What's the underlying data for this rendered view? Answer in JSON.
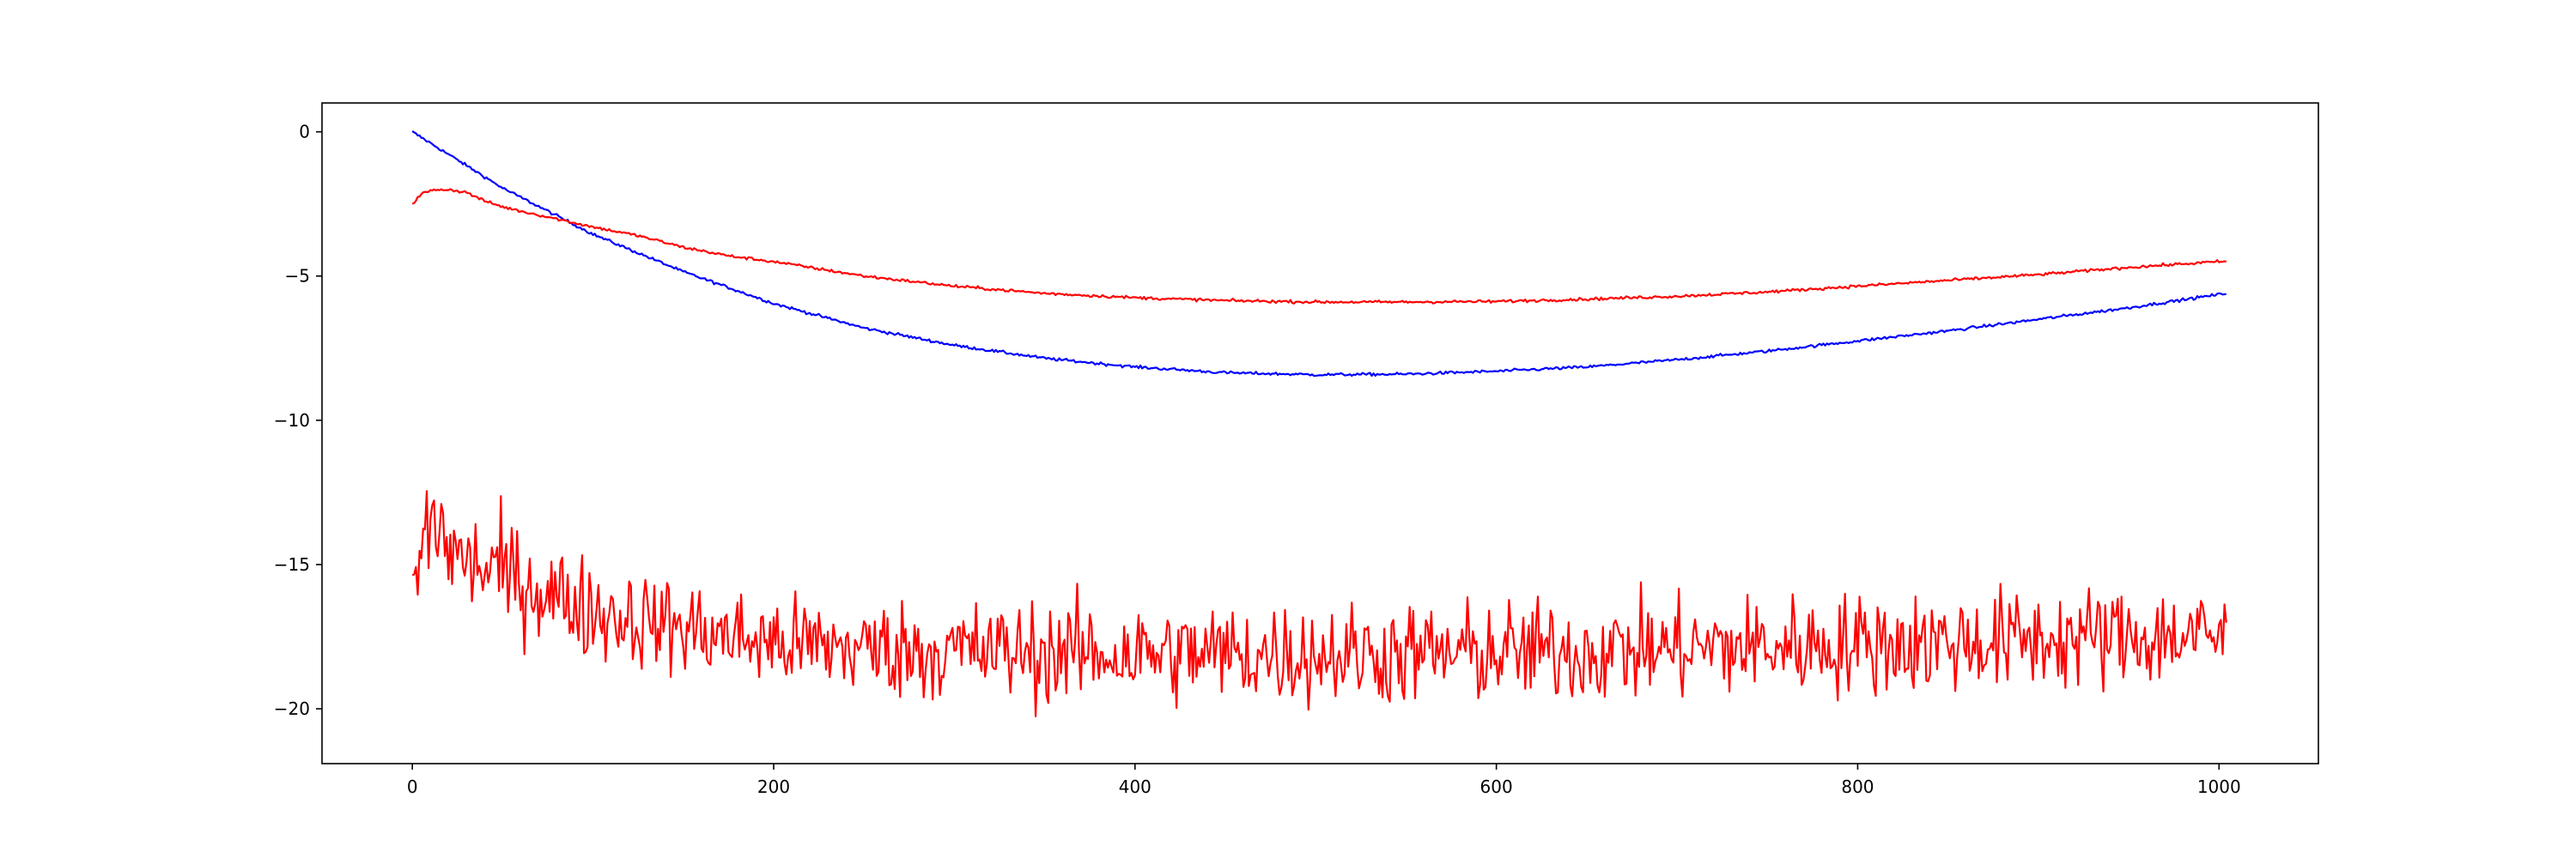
{
  "chart_data": {
    "type": "line",
    "title": "",
    "xlabel": "",
    "ylabel": "",
    "xlim": [
      -50,
      1055
    ],
    "ylim": [
      -21.9,
      1.0
    ],
    "grid": false,
    "legend": "none",
    "xticks": [
      0,
      200,
      400,
      600,
      800,
      1000
    ],
    "yticks": [
      0,
      -5,
      -10,
      -15,
      -20
    ],
    "xtick_labels": [
      "0",
      "200",
      "400",
      "600",
      "800",
      "1000"
    ],
    "ytick_labels": [
      "0",
      "−5",
      "−10",
      "−15",
      "−20"
    ],
    "series": [
      {
        "color": "#0000ff",
        "style": "smooth",
        "x": [
          0,
          50,
          100,
          150,
          200,
          250,
          300,
          350,
          400,
          450,
          500,
          550,
          600,
          650,
          700,
          750,
          800,
          850,
          900,
          950,
          1004
        ],
        "y": [
          0.0,
          -1.95,
          -3.55,
          -4.85,
          -5.95,
          -6.8,
          -7.4,
          -7.85,
          -8.15,
          -8.35,
          -8.42,
          -8.4,
          -8.3,
          -8.15,
          -7.9,
          -7.6,
          -7.25,
          -6.9,
          -6.5,
          -6.1,
          -5.6
        ]
      },
      {
        "color": "#ff0000",
        "style": "smooth",
        "x": [
          0,
          5,
          10,
          15,
          20,
          30,
          40,
          50,
          60,
          75,
          100,
          125,
          150,
          175,
          200,
          250,
          300,
          350,
          400,
          450,
          500,
          550,
          600,
          650,
          700,
          750,
          800,
          850,
          900,
          950,
          1000,
          1004
        ],
        "y": [
          -2.5,
          -2.15,
          -2.05,
          -2.0,
          -2.0,
          -2.1,
          -2.4,
          -2.6,
          -2.75,
          -2.95,
          -3.3,
          -3.6,
          -4.0,
          -4.3,
          -4.5,
          -5.0,
          -5.35,
          -5.6,
          -5.75,
          -5.85,
          -5.9,
          -5.9,
          -5.88,
          -5.8,
          -5.7,
          -5.55,
          -5.35,
          -5.15,
          -4.95,
          -4.7,
          -4.5,
          -4.5
        ]
      },
      {
        "color": "#ff0000",
        "style": "noisy",
        "x": [
          0,
          10,
          25,
          50,
          75,
          100,
          125,
          150,
          175,
          200,
          250,
          300,
          350,
          400,
          450,
          500,
          550,
          600,
          650,
          700,
          750,
          800,
          850,
          900,
          950,
          1004
        ],
        "y": [
          -16.0,
          -13.3,
          -14.8,
          -15.3,
          -16.0,
          -16.6,
          -16.9,
          -17.2,
          -17.5,
          -17.7,
          -17.9,
          -18.0,
          -18.05,
          -18.1,
          -18.1,
          -18.1,
          -18.1,
          -18.05,
          -18.0,
          -17.9,
          -17.85,
          -17.75,
          -17.7,
          -17.6,
          -17.5,
          -17.5
        ],
        "spread": [
          1.2,
          2.2,
          1.6,
          1.7,
          1.6,
          1.6,
          1.5,
          1.5,
          1.5,
          1.5,
          1.5,
          1.6,
          1.6,
          1.6,
          1.6,
          1.6,
          1.6,
          1.6,
          1.6,
          1.6,
          1.6,
          1.6,
          1.6,
          1.6,
          1.6,
          1.6
        ]
      }
    ]
  }
}
